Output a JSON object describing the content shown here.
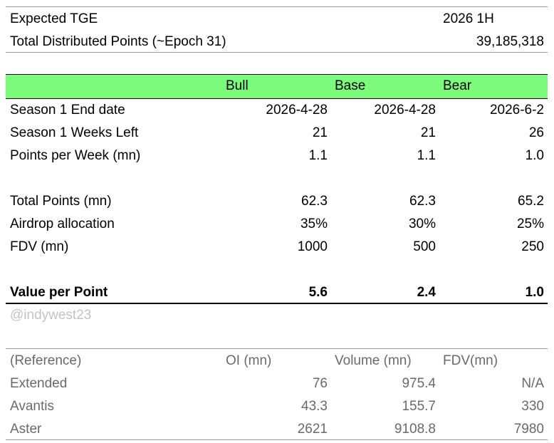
{
  "summary": {
    "tge_label": "Expected TGE",
    "tge_value": "2026 1H",
    "points_label": "Total Distributed Points (~Epoch 31)",
    "points_value": "39,185,318"
  },
  "scenarios": {
    "headers": [
      "Bull",
      "Base",
      "Bear"
    ],
    "rows": [
      {
        "label": "Season 1 End date",
        "values": [
          "2026-4-28",
          "2026-4-28",
          "2026-6-2"
        ]
      },
      {
        "label": "Season 1 Weeks Left",
        "values": [
          "21",
          "21",
          "26"
        ]
      },
      {
        "label": "Points per Week (mn)",
        "values": [
          "1.1",
          "1.1",
          "1.0"
        ]
      },
      {
        "label": "Total Points (mn)",
        "values": [
          "62.3",
          "62.3",
          "65.2"
        ]
      },
      {
        "label": "Airdrop allocation",
        "values": [
          "35%",
          "30%",
          "25%"
        ]
      },
      {
        "label": "FDV (mn)",
        "values": [
          "1000",
          "500",
          "250"
        ]
      }
    ],
    "result": {
      "label": "Value per Point",
      "values": [
        "5.6",
        "2.4",
        "1.0"
      ]
    }
  },
  "watermark": "@indywest23",
  "reference": {
    "headers": [
      "(Reference)",
      "OI (mn)",
      "Volume (mn)",
      "FDV(mn)"
    ],
    "rows": [
      {
        "label": "Extended",
        "values": [
          "76",
          "975.4",
          "N/A"
        ]
      },
      {
        "label": "Avantis",
        "values": [
          "43.3",
          "155.7",
          "330"
        ]
      },
      {
        "label": "Aster",
        "values": [
          "2621",
          "9108.8",
          "7980"
        ]
      }
    ]
  },
  "colors": {
    "header_fill": "#7bfa7b",
    "reference_text": "#6a6a6a",
    "watermark_text": "#c3c3c3"
  }
}
